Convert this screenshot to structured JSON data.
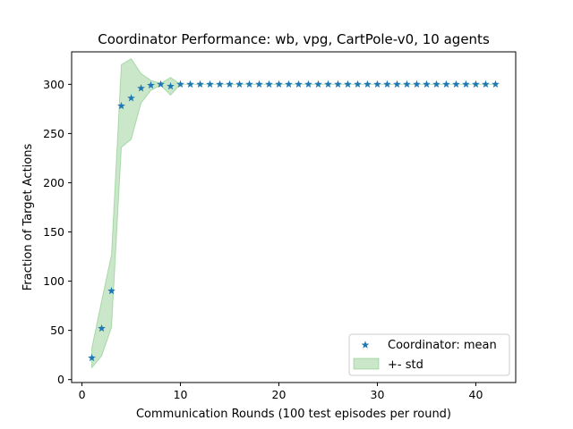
{
  "chart_data": {
    "type": "scatter",
    "title": "Coordinator Performance: wb, vpg, CartPole-v0, 10 agents",
    "xlabel": "Communication Rounds (100 test episodes per round)",
    "ylabel": "Fraction of Target Actions",
    "xlim": [
      -1.05,
      44.05
    ],
    "ylim": [
      -3,
      333
    ],
    "xticks": [
      0,
      10,
      20,
      30,
      40
    ],
    "yticks": [
      0,
      50,
      100,
      150,
      200,
      250,
      300
    ],
    "grid": false,
    "legend_position": "lower-right",
    "series": [
      {
        "name": "Coordinator: mean",
        "marker": "star",
        "color": "#1f77b4",
        "x": [
          1,
          2,
          3,
          4,
          5,
          6,
          7,
          8,
          9,
          10,
          11,
          12,
          13,
          14,
          15,
          16,
          17,
          18,
          19,
          20,
          21,
          22,
          23,
          24,
          25,
          26,
          27,
          28,
          29,
          30,
          31,
          32,
          33,
          34,
          35,
          36,
          37,
          38,
          39,
          40,
          41,
          42
        ],
        "y": [
          22,
          52,
          90,
          278,
          286,
          296,
          299,
          300,
          298,
          300,
          300,
          300,
          300,
          300,
          300,
          300,
          300,
          300,
          300,
          300,
          300,
          300,
          300,
          300,
          300,
          300,
          300,
          300,
          300,
          300,
          300,
          300,
          300,
          300,
          300,
          300,
          300,
          300,
          300,
          300,
          300,
          300
        ]
      }
    ],
    "band": {
      "name": "+- std",
      "color": "#2ca02c",
      "x": [
        1,
        2,
        3,
        4,
        5,
        6,
        7,
        8,
        9,
        10,
        11,
        12,
        13,
        14,
        15,
        16,
        17,
        18,
        19,
        20,
        21,
        22,
        23,
        24,
        25,
        26,
        27,
        28,
        29,
        30,
        31,
        32,
        33,
        34,
        35,
        36,
        37,
        38,
        39,
        40,
        41,
        42
      ],
      "upper": [
        32,
        80,
        127,
        320,
        326,
        311,
        304,
        301,
        307,
        300,
        300,
        300,
        300,
        300,
        300,
        300,
        300,
        300,
        300,
        300,
        300,
        300,
        300,
        300,
        300,
        300,
        300,
        300,
        300,
        300,
        300,
        300,
        300,
        300,
        300,
        300,
        300,
        300,
        300,
        300,
        300,
        300
      ],
      "lower": [
        12,
        24,
        53,
        236,
        244,
        281,
        294,
        299,
        289,
        300,
        300,
        300,
        300,
        300,
        300,
        300,
        300,
        300,
        300,
        300,
        300,
        300,
        300,
        300,
        300,
        300,
        300,
        300,
        300,
        300,
        300,
        300,
        300,
        300,
        300,
        300,
        300,
        300,
        300,
        300,
        300,
        300
      ]
    }
  }
}
